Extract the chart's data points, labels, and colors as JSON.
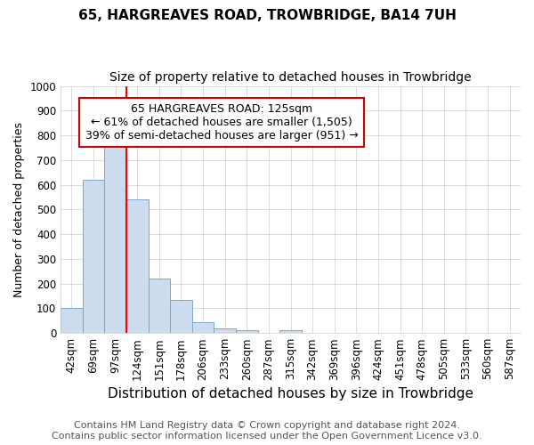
{
  "title": "65, HARGREAVES ROAD, TROWBRIDGE, BA14 7UH",
  "subtitle": "Size of property relative to detached houses in Trowbridge",
  "xlabel": "Distribution of detached houses by size in Trowbridge",
  "ylabel": "Number of detached properties",
  "bins": [
    "42sqm",
    "69sqm",
    "97sqm",
    "124sqm",
    "151sqm",
    "178sqm",
    "206sqm",
    "233sqm",
    "260sqm",
    "287sqm",
    "315sqm",
    "342sqm",
    "369sqm",
    "396sqm",
    "424sqm",
    "451sqm",
    "478sqm",
    "505sqm",
    "533sqm",
    "560sqm",
    "587sqm"
  ],
  "values": [
    100,
    620,
    780,
    540,
    220,
    135,
    45,
    20,
    10,
    0,
    10,
    0,
    0,
    0,
    0,
    0,
    0,
    0,
    0,
    0,
    0
  ],
  "ylim": [
    0,
    1000
  ],
  "bar_color": "#ccdcee",
  "bar_edge_color": "#7aaac8",
  "red_line_bin_index": 3,
  "annotation_line1": "65 HARGREAVES ROAD: 125sqm",
  "annotation_line2": "← 61% of detached houses are smaller (1,505)",
  "annotation_line3": "39% of semi-detached houses are larger (951) →",
  "annotation_box_color": "#ffffff",
  "annotation_box_edge_color": "#cc0000",
  "footer1": "Contains HM Land Registry data © Crown copyright and database right 2024.",
  "footer2": "Contains public sector information licensed under the Open Government Licence v3.0.",
  "title_fontsize": 11,
  "subtitle_fontsize": 10,
  "xlabel_fontsize": 11,
  "ylabel_fontsize": 9,
  "tick_fontsize": 8.5,
  "footer_fontsize": 8,
  "bg_color": "#ffffff"
}
